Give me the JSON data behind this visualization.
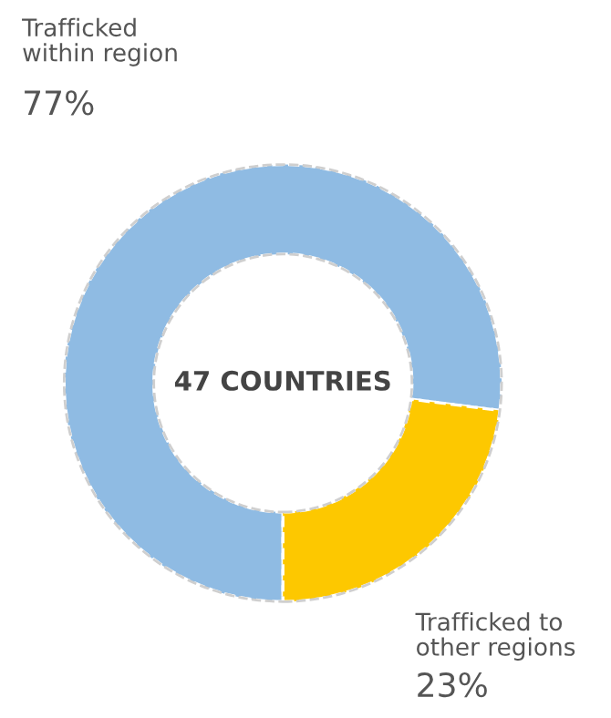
{
  "chart_data": {
    "type": "donut",
    "categories": [
      "Trafficked\nwithin region",
      "Trafficked to\nother regions"
    ],
    "values": [
      77,
      23
    ],
    "colors": [
      "#8fbbe3",
      "#fdc800"
    ],
    "value_labels": [
      "77%",
      "23%"
    ],
    "annotations": [
      "47 COUNTRIES"
    ],
    "legend": false
  }
}
